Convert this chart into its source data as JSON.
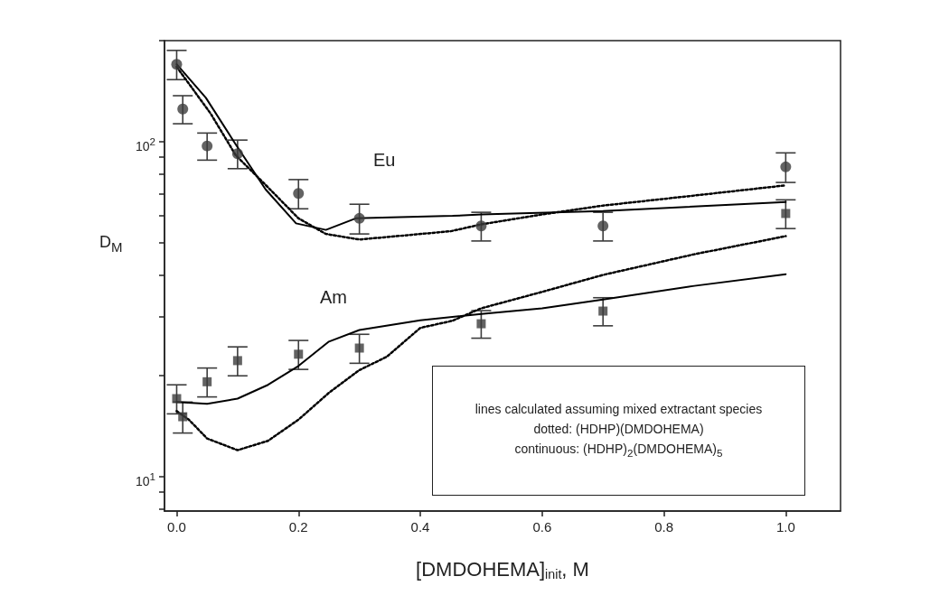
{
  "chart_data": {
    "type": "scatter",
    "xlabel": "[DMDOHEMA]$_{init}$, M",
    "ylabel": "D$_{M}$",
    "xlim": [
      -0.02,
      1.09
    ],
    "xticks": [
      {
        "value": 0,
        "label": "0.0"
      },
      {
        "value": 0.2,
        "label": "0.2"
      },
      {
        "value": 0.4,
        "label": "0.4"
      },
      {
        "value": 0.6,
        "label": "0.6"
      },
      {
        "value": 0.8,
        "label": "0.8"
      },
      {
        "value": 1,
        "label": "1.0"
      }
    ],
    "ylim": [
      7.9,
      200
    ],
    "yticks": [
      {
        "value": 8,
        "label": null
      },
      {
        "value": 9,
        "label": null
      },
      {
        "value": 10,
        "label": "10$^{1}$"
      },
      {
        "value": 20,
        "label": null
      },
      {
        "value": 30,
        "label": null
      },
      {
        "value": 40,
        "label": null
      },
      {
        "value": 50,
        "label": null
      },
      {
        "value": 60,
        "label": null
      },
      {
        "value": 70,
        "label": null
      },
      {
        "value": 80,
        "label": null
      },
      {
        "value": 90,
        "label": null
      },
      {
        "value": 100,
        "label": "10$^{2}$"
      },
      {
        "value": 200,
        "label": null
      }
    ],
    "log": "y",
    "grid": false,
    "series": [
      {
        "marker": "circle",
        "color": "#3c3c3c",
        "x": [
          0,
          0.01,
          0.05,
          0.1,
          0.2,
          0.3,
          0.5,
          0.7,
          1.0
        ],
        "values": [
          170,
          125,
          97,
          92,
          70,
          59,
          56,
          56,
          84
        ],
        "errors": [
          17,
          12,
          9,
          9,
          7,
          6,
          5.5,
          5.5,
          8.5
        ]
      },
      {
        "marker": "square",
        "color": "#3c3c3c",
        "x": [
          0,
          0.01,
          0.05,
          0.1,
          0.2,
          0.3,
          0.5,
          0.7,
          1.0
        ],
        "values": [
          17.1,
          15.1,
          19.2,
          22.2,
          23.2,
          24.2,
          28.6,
          31.2,
          61
        ],
        "errors": [
          1.7,
          1.6,
          1.9,
          2.2,
          2.3,
          2.4,
          2.7,
          3,
          6
        ]
      },
      {
        "type": "line",
        "marker": "none",
        "line_style": "solid",
        "color": "#000000",
        "x": [
          0,
          0.048,
          0.097,
          0.146,
          0.196,
          0.245,
          0.294,
          0.453,
          0.5,
          0.7,
          1.0
        ],
        "values": [
          170,
          135,
          98,
          72,
          57,
          54.5,
          59,
          60,
          60.6,
          62,
          66
        ]
      },
      {
        "type": "line",
        "marker": "none",
        "line_style": "dotted",
        "color": "#000000",
        "x": [
          0,
          0.056,
          0.097,
          0.15,
          0.2,
          0.245,
          0.3,
          0.45,
          0.5,
          0.6,
          0.7,
          0.85,
          1.0
        ],
        "values": [
          167,
          121,
          91,
          73,
          59,
          53,
          51,
          54,
          56.6,
          60.6,
          64.4,
          69,
          74
        ]
      },
      {
        "type": "line",
        "marker": "none",
        "line_style": "solid",
        "color": "#000000",
        "x": [
          0,
          0.05,
          0.1,
          0.15,
          0.2,
          0.25,
          0.3,
          0.4,
          0.5,
          0.6,
          0.7,
          0.85,
          1.0
        ],
        "values": [
          16.7,
          16.5,
          17.1,
          18.8,
          21.4,
          25.3,
          27.4,
          29.3,
          30.6,
          31.8,
          33.8,
          37.1,
          40.2
        ]
      },
      {
        "type": "line",
        "marker": "none",
        "line_style": "dotted",
        "color": "#000000",
        "x": [
          0,
          0.02,
          0.05,
          0.1,
          0.15,
          0.2,
          0.25,
          0.3,
          0.345,
          0.4,
          0.453,
          0.5,
          0.6,
          0.7,
          0.85,
          1.0
        ],
        "values": [
          15.7,
          14.8,
          13,
          12,
          12.8,
          14.8,
          17.8,
          20.8,
          22.8,
          27.8,
          29.2,
          31.8,
          35.6,
          40,
          46.1,
          52.2
        ]
      }
    ],
    "annotations": [
      "Eu",
      "Am",
      "lines calculated assuming mixed extractant species",
      "dotted: (HDHP)(DMDOHEMA)",
      "continuous: (HDHP)$_{2}$(DMDOHEMA)$_{5}$"
    ]
  }
}
